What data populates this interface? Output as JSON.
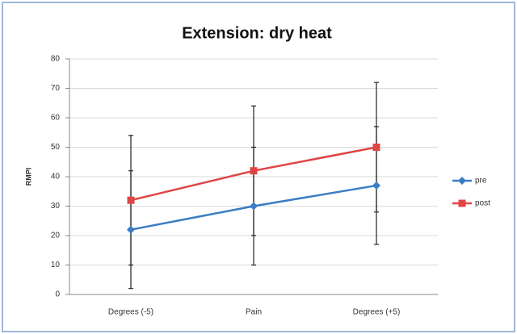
{
  "chart_data": {
    "type": "line",
    "title": "Extension: dry heat",
    "y_label": "RMPI",
    "categories": [
      "Degrees (-5)",
      "Pain",
      "Degrees (+5)"
    ],
    "series": [
      {
        "name": "pre",
        "color": "#3b7dc4",
        "marker": "diamond",
        "values": [
          22,
          30,
          37
        ],
        "errors": [
          20,
          20,
          20
        ]
      },
      {
        "name": "post",
        "color": "#e04444",
        "marker": "square",
        "values": [
          32,
          42,
          50
        ],
        "errors": [
          22,
          22,
          22
        ]
      }
    ],
    "ylim": [
      0,
      80
    ],
    "yticks": [
      0,
      10,
      20,
      30,
      40,
      50,
      60,
      70,
      80
    ],
    "grid": true,
    "legend": "right"
  }
}
